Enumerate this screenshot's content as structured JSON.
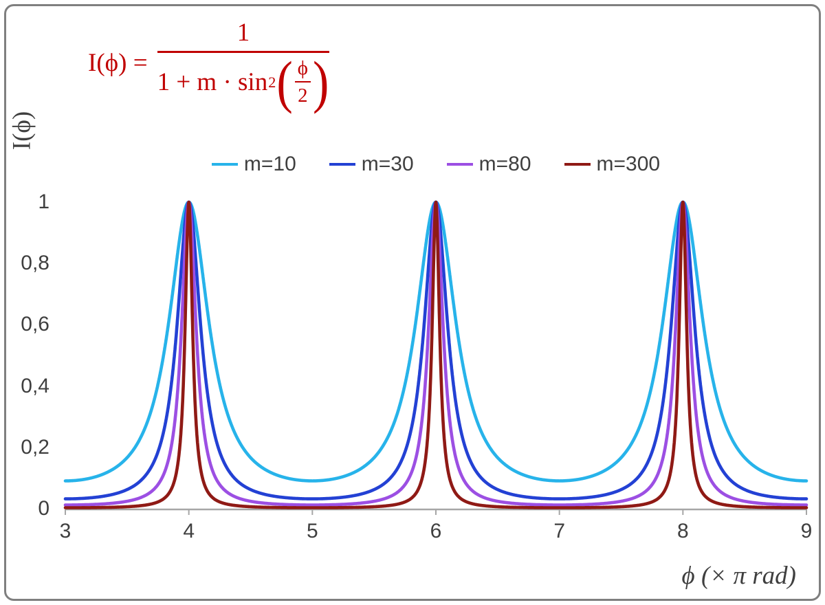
{
  "frame": {
    "border_color": "#7f7f7f",
    "background": "#ffffff"
  },
  "formula": {
    "color": "#c00000",
    "lhs": "I(ϕ) =",
    "numerator": "1",
    "den_prefix": "1 + m · sin",
    "den_exp": "2",
    "paren_open": "(",
    "paren_close": ")",
    "inner_top": "ϕ",
    "inner_bottom": "2",
    "as_text": "I(ϕ) = 1 / (1 + m · sin²(ϕ/2))"
  },
  "axis": {
    "line_color": "#a6a6a6",
    "text_color": "#3f3f3f"
  },
  "chart_data": {
    "type": "line",
    "function": "I(x) = 1 / (1 + m * sin(x*pi/2)^2), x in units of pi rad",
    "x": {
      "label": "ϕ  (× π rad)",
      "min": 3,
      "max": 9,
      "tick_values": [
        3,
        4,
        5,
        6,
        7,
        8,
        9
      ],
      "tick_labels": [
        "3",
        "4",
        "5",
        "6",
        "7",
        "8",
        "9"
      ]
    },
    "y": {
      "label": "I(ϕ)",
      "min": 0,
      "max": 1,
      "tick_values": [
        0,
        0.2,
        0.4,
        0.6,
        0.8,
        1
      ],
      "tick_labels": [
        "0",
        "0,2",
        "0,4",
        "0,6",
        "0,8",
        "1"
      ]
    },
    "series": [
      {
        "name": "m=10",
        "m": 10,
        "color": "#27b3ea",
        "min_value": 0.0909
      },
      {
        "name": "m=30",
        "m": 30,
        "color": "#2341d4",
        "min_value": 0.0323
      },
      {
        "name": "m=80",
        "m": 80,
        "color": "#9c4fe3",
        "min_value": 0.0123
      },
      {
        "name": "m=300",
        "m": 300,
        "color": "#8f1a15",
        "min_value": 0.0033
      }
    ],
    "peaks_at_x": [
      4,
      6,
      8
    ],
    "peak_value": 1,
    "grid": false,
    "legend_position": "top-center"
  }
}
